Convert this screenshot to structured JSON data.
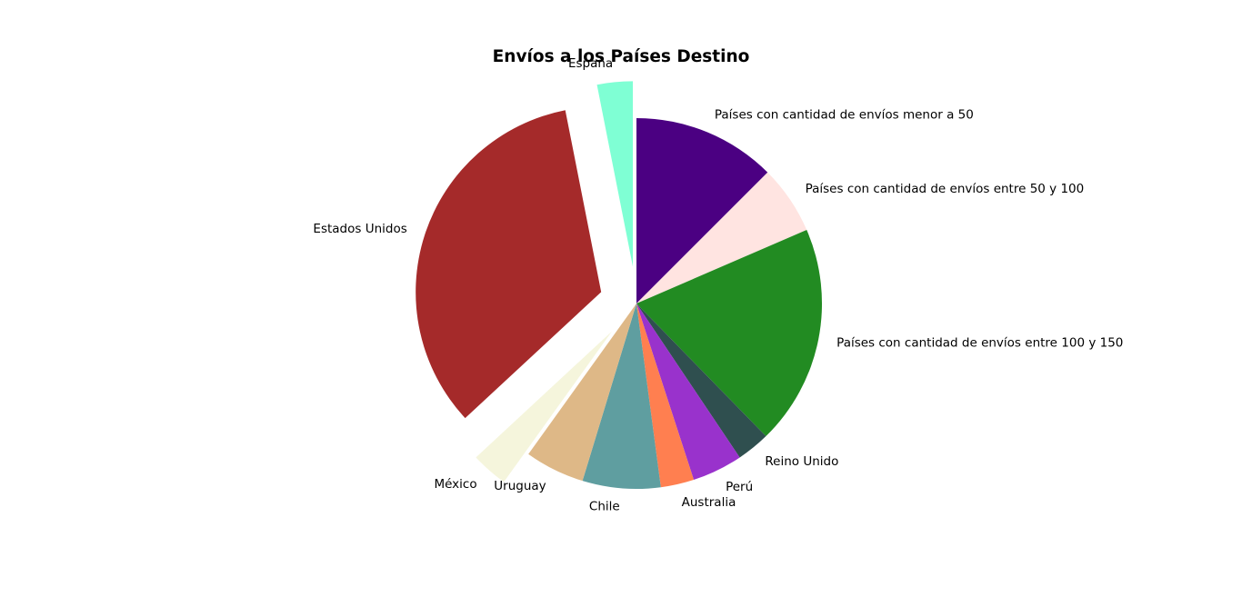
{
  "chart_data": {
    "type": "pie",
    "title": "Envíos a los Países Destino",
    "start_angle_deg": 90,
    "direction": "clockwise",
    "slices": [
      {
        "label": "Países con cantidad de envíos menor a 50",
        "value": 12.5,
        "color": "#4b0082",
        "exploded": false
      },
      {
        "label": "Países con cantidad de envíos entre 50 y 100",
        "value": 6.0,
        "color": "#ffe4e1",
        "exploded": false
      },
      {
        "label": "Países con cantidad de envíos entre 100 y 150",
        "value": 19.2,
        "color": "#228b22",
        "exploded": false
      },
      {
        "label": "Reino Unido",
        "value": 2.9,
        "color": "#2f4f4f",
        "exploded": false
      },
      {
        "label": "Perú",
        "value": 4.4,
        "color": "#9932cc",
        "exploded": false
      },
      {
        "label": "Australia",
        "value": 2.9,
        "color": "#ff7f50",
        "exploded": false
      },
      {
        "label": "Chile",
        "value": 6.8,
        "color": "#5f9ea0",
        "exploded": false
      },
      {
        "label": "Uruguay",
        "value": 5.2,
        "color": "#deb887",
        "exploded": false
      },
      {
        "label": "México",
        "value": 3.2,
        "color": "#f5f5dc",
        "exploded": true
      },
      {
        "label": "Estados Unidos",
        "value": 33.8,
        "color": "#a52a2a",
        "exploded": true
      },
      {
        "label": "España",
        "value": 3.1,
        "color": "#7fffd4",
        "exploded": true
      }
    ]
  }
}
